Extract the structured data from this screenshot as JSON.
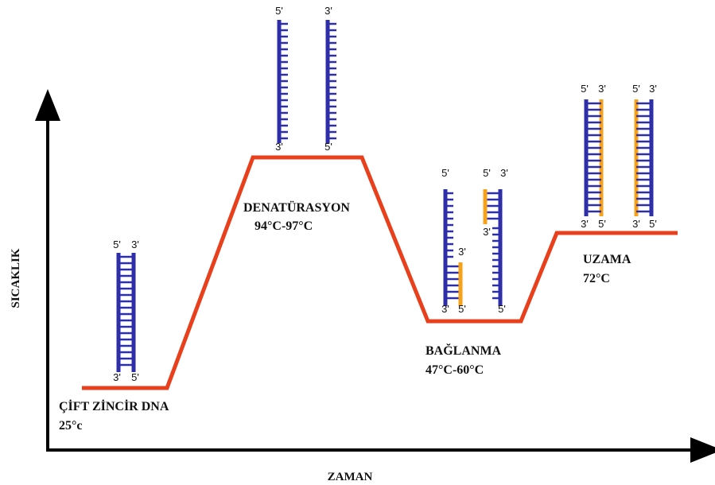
{
  "axes": {
    "y_label": "SICAKLIK",
    "x_label": "ZAMAN"
  },
  "stages": [
    {
      "name": "ÇİFT ZİNCİR DNA",
      "temp": "25°c"
    },
    {
      "name": "DENATÜRASYON",
      "temp": "94°C-97°C"
    },
    {
      "name": "BAĞLANMA",
      "temp": "47°C-60°C"
    },
    {
      "name": "UZAMA",
      "temp": "72°C"
    }
  ],
  "dna_labels": [
    [
      "5'",
      "3'",
      "3'",
      "5'"
    ],
    [
      "5'",
      "3'"
    ],
    [
      "3'",
      "5'"
    ],
    [
      "5'",
      "3'",
      "3'",
      "5'"
    ],
    [
      "5'",
      "3'",
      "3'",
      "5'"
    ],
    [
      "5'",
      "3'",
      "3'",
      "5'"
    ],
    [
      "5'",
      "3'",
      "3'",
      "5'"
    ]
  ]
}
